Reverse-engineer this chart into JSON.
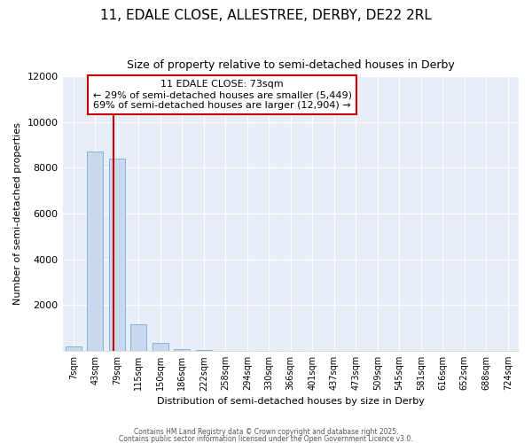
{
  "title": "11, EDALE CLOSE, ALLESTREE, DERBY, DE22 2RL",
  "subtitle": "Size of property relative to semi-detached houses in Derby",
  "xlabel": "Distribution of semi-detached houses by size in Derby",
  "ylabel": "Number of semi-detached properties",
  "bar_categories": [
    "7sqm",
    "43sqm",
    "79sqm",
    "115sqm",
    "150sqm",
    "186sqm",
    "222sqm",
    "258sqm",
    "294sqm",
    "330sqm",
    "366sqm",
    "401sqm",
    "437sqm",
    "473sqm",
    "509sqm",
    "545sqm",
    "581sqm",
    "616sqm",
    "652sqm",
    "688sqm",
    "724sqm"
  ],
  "bar_values": [
    200,
    8700,
    8400,
    1150,
    350,
    100,
    60,
    0,
    0,
    0,
    0,
    0,
    0,
    0,
    0,
    0,
    0,
    0,
    0,
    0,
    0
  ],
  "bar_color": "#c8d8ef",
  "bar_edge_color": "#7aaad0",
  "vline_x": 1.83,
  "annotation_line1": "11 EDALE CLOSE: 73sqm",
  "annotation_line2": "← 29% of semi-detached houses are smaller (5,449)",
  "annotation_line3": "69% of semi-detached houses are larger (12,904) →",
  "ylim": [
    0,
    12000
  ],
  "yticks": [
    0,
    2000,
    4000,
    6000,
    8000,
    10000,
    12000
  ],
  "bg_color": "#ffffff",
  "plot_bg_color": "#e8eef8",
  "grid_color": "#ffffff",
  "annotation_box_facecolor": "#ffffff",
  "annotation_box_edge": "#cc0000",
  "vline_color": "#cc0000",
  "footer1": "Contains HM Land Registry data © Crown copyright and database right 2025.",
  "footer2": "Contains public sector information licensed under the Open Government Licence v3.0.",
  "title_fontsize": 11,
  "subtitle_fontsize": 9,
  "annotation_fontsize": 8
}
